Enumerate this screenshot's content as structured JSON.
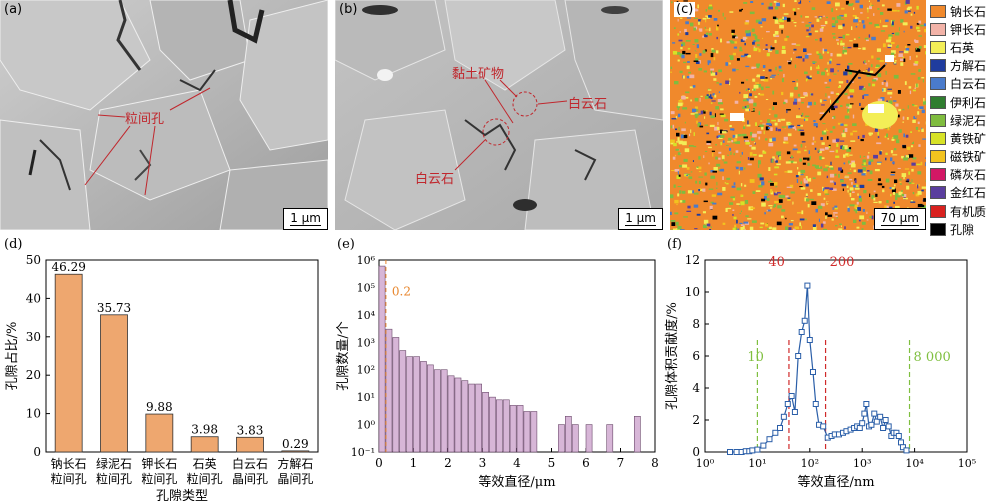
{
  "panels": {
    "a": {
      "label": "(a)",
      "scale": "1 μm",
      "annotation": "粒间孔"
    },
    "b": {
      "label": "(b)",
      "scale": "1 μm",
      "annotations": [
        "黏土矿物",
        "白云石",
        "白云石"
      ]
    },
    "c": {
      "label": "(c)",
      "scale": "70 μm"
    }
  },
  "legend": [
    {
      "label": "钠长石",
      "color": "#f0892c"
    },
    {
      "label": "钾长石",
      "color": "#f2b3a8"
    },
    {
      "label": "石英",
      "color": "#f3ee57"
    },
    {
      "label": "方解石",
      "color": "#1f3c9e"
    },
    {
      "label": "白云石",
      "color": "#4a7bcb"
    },
    {
      "label": "伊利石",
      "color": "#2f7d2f"
    },
    {
      "label": "绿泥石",
      "color": "#7fbc3f"
    },
    {
      "label": "黄铁矿",
      "color": "#d7e227"
    },
    {
      "label": "磁铁矿",
      "color": "#f2c31f"
    },
    {
      "label": "磷灰石",
      "color": "#d21765"
    },
    {
      "label": "金红石",
      "color": "#5a3e9e"
    },
    {
      "label": "有机质",
      "color": "#d8211f"
    },
    {
      "label": "孔隙",
      "color": "#000000"
    }
  ],
  "chart_data": [
    {
      "panel": "(d)",
      "type": "bar",
      "categories": [
        [
          "钠长石",
          "粒间孔"
        ],
        [
          "绿泥石",
          "粒间孔"
        ],
        [
          "钾长石",
          "粒间孔"
        ],
        [
          "石英",
          "粒间孔"
        ],
        [
          "白云石",
          "晶间孔"
        ],
        [
          "方解石",
          "晶间孔"
        ]
      ],
      "values": [
        46.29,
        35.73,
        9.88,
        3.98,
        3.83,
        0.29
      ],
      "value_labels": [
        "46.29",
        "35.73",
        "9.88",
        "3.98",
        "3.83",
        "0.29"
      ],
      "xlabel": "孔隙类型",
      "ylabel": "孔隙占比/%",
      "ylim": [
        0,
        50
      ],
      "yticks": [
        "0",
        "10",
        "20",
        "30",
        "40",
        "50"
      ],
      "color": "#eea76f"
    },
    {
      "panel": "(e)",
      "type": "bar",
      "xlabel": "等效直径/μm",
      "ylabel": "孔隙数量/个",
      "yscale": "log",
      "ylim": [
        0.1,
        1000000
      ],
      "yticks": [
        "10⁻¹",
        "10⁰",
        "10¹",
        "10²",
        "10³",
        "10⁴",
        "10⁵",
        "10⁶"
      ],
      "xlim": [
        0,
        8
      ],
      "xticks": [
        "0",
        "1",
        "2",
        "3",
        "4",
        "5",
        "6",
        "7",
        "8"
      ],
      "bin_width": 0.2,
      "bin_starts": [
        0,
        0.2,
        0.4,
        0.6,
        0.8,
        1.0,
        1.2,
        1.4,
        1.6,
        1.8,
        2.0,
        2.2,
        2.4,
        2.6,
        2.8,
        3.0,
        3.2,
        3.4,
        3.6,
        3.8,
        4.0,
        4.2,
        4.4,
        5.2,
        5.4,
        5.6,
        6.0,
        6.6,
        7.4
      ],
      "counts": [
        600000,
        3000,
        1500,
        500,
        300,
        300,
        200,
        150,
        100,
        100,
        60,
        50,
        40,
        30,
        30,
        15,
        10,
        8,
        8,
        5,
        5,
        3,
        3,
        1,
        2,
        1,
        1,
        1,
        2
      ],
      "annotation": "0.2",
      "annotation_color": "#e8862c",
      "color": "#d7b6d7"
    },
    {
      "panel": "(f)",
      "type": "line",
      "xlabel": "等效直径/nm",
      "ylabel": "孔隙体积贡献度/%",
      "xscale": "log",
      "xlim": [
        1,
        100000
      ],
      "xticks": [
        "10⁰",
        "10¹",
        "10²",
        "10³",
        "10⁴",
        "10⁵"
      ],
      "ylim": [
        0,
        12
      ],
      "yticks": [
        "0",
        "2",
        "4",
        "6",
        "8",
        "10",
        "12"
      ],
      "x": [
        3,
        4,
        5,
        6,
        7,
        8,
        10,
        13,
        17,
        22,
        27,
        32,
        38,
        45,
        52,
        60,
        70,
        80,
        90,
        100,
        115,
        130,
        150,
        180,
        220,
        260,
        300,
        360,
        430,
        500,
        600,
        700,
        800,
        900,
        1000,
        1100,
        1200,
        1350,
        1500,
        1700,
        1900,
        2200,
        2500,
        2800,
        3200,
        3600,
        4000,
        4500,
        5000,
        5500,
        6000,
        7000
      ],
      "y": [
        0,
        0,
        0,
        0.05,
        0.05,
        0.1,
        0.15,
        0.4,
        0.8,
        1.2,
        1.5,
        2.2,
        3.0,
        3.5,
        2.5,
        6.0,
        7.5,
        8.2,
        10.4,
        7.0,
        5.0,
        3.0,
        1.7,
        1.6,
        0.9,
        1.0,
        1.1,
        1.1,
        1.2,
        1.3,
        1.4,
        1.5,
        1.6,
        1.5,
        1.8,
        2.4,
        3.0,
        1.6,
        1.7,
        2.4,
        1.9,
        2.2,
        1.5,
        2.0,
        1.6,
        1.0,
        1.2,
        1.2,
        1.0,
        0.6,
        0.3,
        0.1
      ],
      "vlines": [
        {
          "x": 10,
          "label": "10",
          "color": "#7fbf3f"
        },
        {
          "x": 40,
          "label": "40",
          "color": "#d02a2a"
        },
        {
          "x": 200,
          "label": "200",
          "color": "#d02a2a"
        },
        {
          "x": 8000,
          "label": "8 000",
          "color": "#7fbf3f"
        }
      ],
      "color": "#2a5ea8"
    }
  ]
}
